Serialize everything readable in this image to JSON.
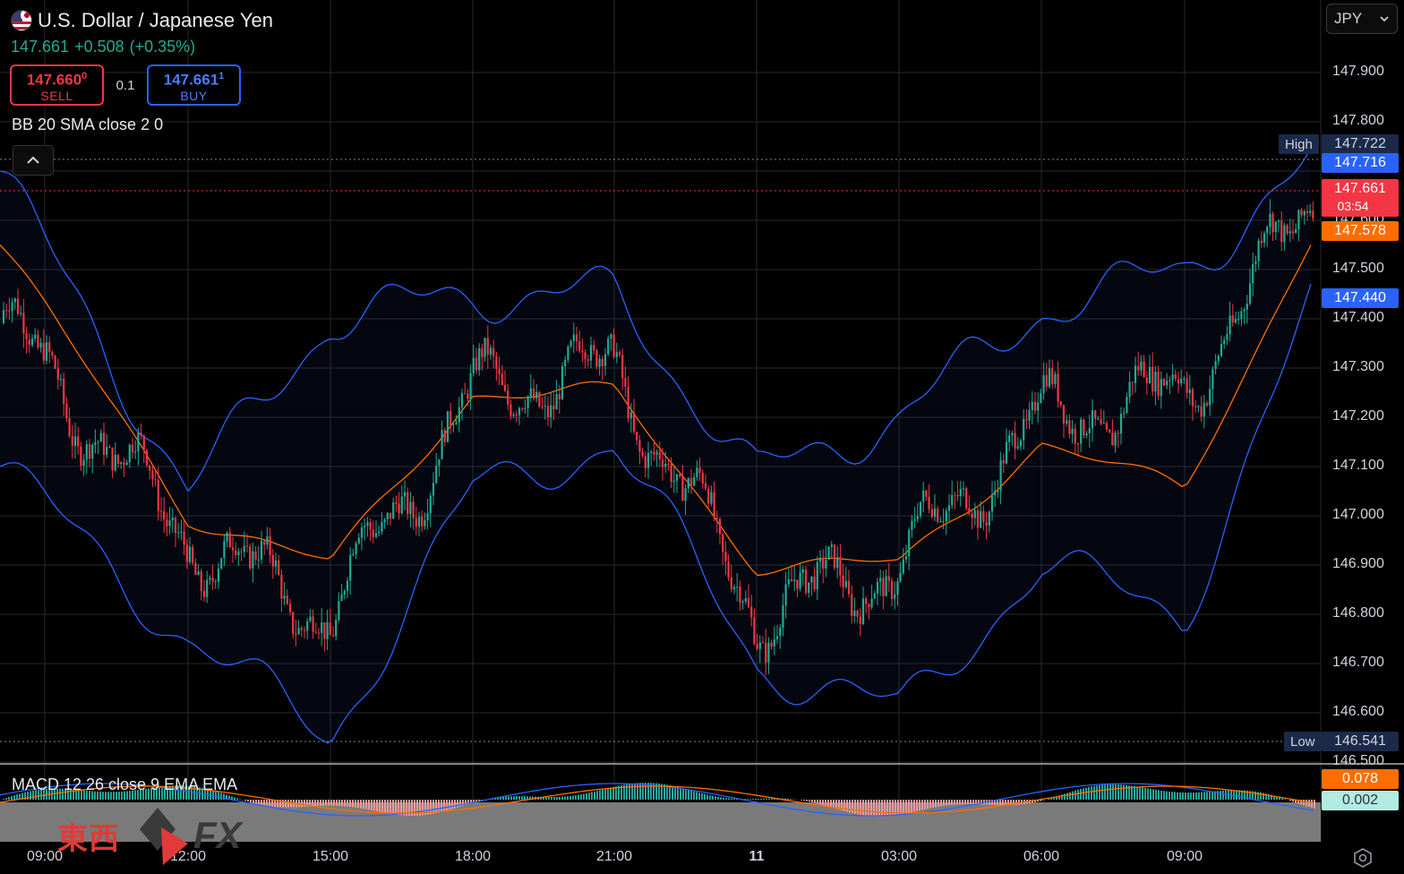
{
  "header": {
    "title": "U.S. Dollar / Japanese Yen",
    "last_price": "147.661",
    "change": "+0.508",
    "change_pct": "(+0.35%)"
  },
  "trade": {
    "sell_price_main": "147.660",
    "sell_price_sup": "0",
    "sell_label": "SELL",
    "quantity": "0.1",
    "buy_price_main": "147.661",
    "buy_price_sup": "1",
    "buy_label": "BUY"
  },
  "indicators": {
    "bb_legend": "BB 20 SMA close 2 0",
    "macd_legend": "MACD 12 26 close 9 EMA EMA"
  },
  "currency_selector": {
    "value": "JPY"
  },
  "price_axis": {
    "ticks": [
      "147.900",
      "147.800",
      "147.600",
      "147.500",
      "147.400",
      "147.300",
      "147.200",
      "147.100",
      "147.000",
      "146.900",
      "146.800",
      "146.700",
      "146.600",
      "146.500"
    ]
  },
  "price_badges": {
    "high_tag": "High",
    "high_value": "147.722",
    "bb_upper": "147.716",
    "current": "147.661",
    "countdown": "03:54",
    "bb_basis": "147.578",
    "bb_lower": "147.440",
    "low_tag": "Low",
    "low_value": "146.541"
  },
  "macd_badges": {
    "macd": "0.078",
    "signal": "0.002"
  },
  "time_axis": {
    "labels": [
      "09:00",
      "12:00",
      "15:00",
      "18:00",
      "21:00",
      "11",
      "03:00",
      "06:00",
      "09:00"
    ]
  },
  "watermark": {
    "cjk": "東西",
    "fx": "FX"
  },
  "colors": {
    "bull": "#22ab94",
    "bear": "#f23645",
    "bb_band": "#2962ff",
    "basis": "#ff6d00",
    "macd": "#2962ff",
    "signal": "#ff6d00"
  },
  "chart_data": {
    "type": "candlestick",
    "symbol": "USD/JPY",
    "ylim": [
      146.5,
      147.95
    ],
    "series": [
      {
        "name": "BB upper",
        "x": [
          "09:00",
          "12:00",
          "15:00",
          "18:00",
          "21:00",
          "00:00",
          "03:00",
          "06:00",
          "09:00",
          "10:30"
        ],
        "values": [
          147.7,
          147.05,
          147.4,
          147.45,
          147.45,
          147.08,
          147.2,
          147.42,
          147.5,
          147.72
        ]
      },
      {
        "name": "BB basis",
        "x": [
          "09:00",
          "12:00",
          "15:00",
          "18:00",
          "21:00",
          "00:00",
          "03:00",
          "06:00",
          "09:00",
          "10:30"
        ],
        "values": [
          147.55,
          147.0,
          146.9,
          147.25,
          147.25,
          146.9,
          146.9,
          147.15,
          147.05,
          147.58
        ]
      },
      {
        "name": "BB lower",
        "x": [
          "09:00",
          "12:00",
          "15:00",
          "18:00",
          "21:00",
          "00:00",
          "03:00",
          "06:00",
          "09:00",
          "10:30"
        ],
        "values": [
          147.1,
          146.75,
          146.55,
          147.05,
          147.15,
          146.7,
          146.6,
          146.9,
          146.8,
          147.44
        ]
      },
      {
        "name": "Close",
        "x": [
          "09:00",
          "12:00",
          "15:00",
          "18:00",
          "21:00",
          "00:00",
          "03:00",
          "06:00",
          "09:00",
          "10:30"
        ],
        "values": [
          147.4,
          146.95,
          146.8,
          147.25,
          147.3,
          146.8,
          146.9,
          147.2,
          147.25,
          147.66
        ]
      }
    ]
  }
}
